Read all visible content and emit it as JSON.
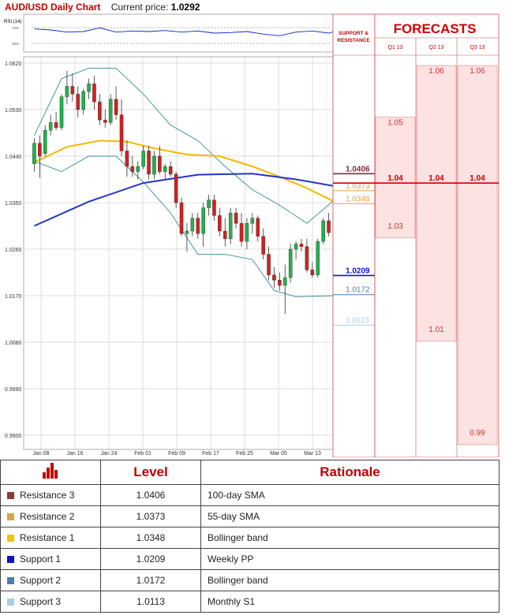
{
  "header": {
    "title": "AUD/USD Daily Chart",
    "price_label": "Current price:",
    "price": "1.0292"
  },
  "rsi_label": "RSI (14)",
  "rsi_ticks": [
    "70%",
    "30%"
  ],
  "sr_header": "SUPPORT & RESISTANCE",
  "forecasts_title": "FORECASTS",
  "colors": {
    "resistance3": "#7b2d3b",
    "resistance2": "#d9a441",
    "resistance1": "#f5c400",
    "support1": "#1111cc",
    "support2": "#4a7fb5",
    "support3": "#a8cde3",
    "up": "#22b14c",
    "down": "#d12020",
    "sma100": "#2233cc",
    "sma55": "#f5b800",
    "boll": "#2f8f8f"
  },
  "chart_data": {
    "type": "candlestick",
    "title": "AUD/USD Daily Chart",
    "ylim": [
      0.99,
      1.062
    ],
    "y_ticks": [
      "1.0620",
      "1.0530",
      "1.0440",
      "1.0350",
      "1.0260",
      "1.0170",
      "1.0080",
      "0.9990",
      "0.9900"
    ],
    "x_ticks": [
      "Jan 08",
      "Jan 16",
      "Jan 24",
      "Feb 01",
      "Feb 09",
      "Feb 17",
      "Feb 25",
      "Mar 05",
      "Mar 13"
    ],
    "ohlc": [
      [
        1.0425,
        1.0475,
        1.041,
        1.0465
      ],
      [
        1.0465,
        1.048,
        1.0398,
        1.044
      ],
      [
        1.0445,
        1.05,
        1.044,
        1.049
      ],
      [
        1.049,
        1.052,
        1.048,
        1.0505
      ],
      [
        1.0505,
        1.0525,
        1.049,
        1.0495
      ],
      [
        1.0495,
        1.056,
        1.049,
        1.0555
      ],
      [
        1.0555,
        1.0605,
        1.054,
        1.0575
      ],
      [
        1.0575,
        1.06,
        1.0545,
        1.056
      ],
      [
        1.056,
        1.0575,
        1.0515,
        1.053
      ],
      [
        1.053,
        1.057,
        1.052,
        1.0565
      ],
      [
        1.0565,
        1.059,
        1.055,
        1.058
      ],
      [
        1.058,
        1.0595,
        1.053,
        1.0545
      ],
      [
        1.0545,
        1.056,
        1.05,
        1.051
      ],
      [
        1.051,
        1.053,
        1.0495,
        1.0505
      ],
      [
        1.0505,
        1.056,
        1.05,
        1.055
      ],
      [
        1.055,
        1.0575,
        1.051,
        1.052
      ],
      [
        1.052,
        1.055,
        1.044,
        1.045
      ],
      [
        1.045,
        1.047,
        1.04,
        1.042
      ],
      [
        1.042,
        1.044,
        1.04,
        1.041
      ],
      [
        1.041,
        1.043,
        1.0395,
        1.042
      ],
      [
        1.042,
        1.046,
        1.0415,
        1.045
      ],
      [
        1.045,
        1.046,
        1.0395,
        1.0405
      ],
      [
        1.0405,
        1.045,
        1.0395,
        1.044
      ],
      [
        1.044,
        1.046,
        1.0405,
        1.041
      ],
      [
        1.041,
        1.0425,
        1.0395,
        1.042
      ],
      [
        1.042,
        1.043,
        1.04,
        1.0405
      ],
      [
        1.0405,
        1.041,
        1.034,
        1.035
      ],
      [
        1.035,
        1.036,
        1.0285,
        1.029
      ],
      [
        1.029,
        1.031,
        1.0255,
        1.0295
      ],
      [
        1.0295,
        1.033,
        1.0285,
        1.032
      ],
      [
        1.032,
        1.033,
        1.028,
        1.029
      ],
      [
        1.029,
        1.035,
        1.0265,
        1.034
      ],
      [
        1.034,
        1.0365,
        1.0325,
        1.0355
      ],
      [
        1.0355,
        1.0365,
        1.0315,
        1.0325
      ],
      [
        1.0325,
        1.034,
        1.0285,
        1.0295
      ],
      [
        1.0295,
        1.032,
        1.0265,
        1.028
      ],
      [
        1.028,
        1.034,
        1.027,
        1.033
      ],
      [
        1.033,
        1.034,
        1.03,
        1.031
      ],
      [
        1.031,
        1.033,
        1.0265,
        1.0275
      ],
      [
        1.0275,
        1.032,
        1.026,
        1.031
      ],
      [
        1.031,
        1.033,
        1.029,
        1.032
      ],
      [
        1.032,
        1.0325,
        1.0275,
        1.0285
      ],
      [
        1.0285,
        1.03,
        1.024,
        1.025
      ],
      [
        1.025,
        1.0265,
        1.02,
        1.021
      ],
      [
        1.021,
        1.0225,
        1.0185,
        1.02
      ],
      [
        1.02,
        1.0215,
        1.018,
        1.019
      ],
      [
        1.019,
        1.023,
        1.0135,
        1.0205
      ],
      [
        1.0205,
        1.027,
        1.0195,
        1.026
      ],
      [
        1.026,
        1.0275,
        1.024,
        1.027
      ],
      [
        1.027,
        1.028,
        1.0255,
        1.0265
      ],
      [
        1.0265,
        1.028,
        1.0215,
        1.022
      ],
      [
        1.022,
        1.0235,
        1.0205,
        1.021
      ],
      [
        1.021,
        1.028,
        1.0205,
        1.0275
      ],
      [
        1.0275,
        1.032,
        1.027,
        1.0315
      ],
      [
        1.0315,
        1.033,
        1.0285,
        1.0292
      ]
    ],
    "sma100": [
      [
        0,
        1.0305
      ],
      [
        10,
        1.0352
      ],
      [
        20,
        1.0388
      ],
      [
        30,
        1.0404
      ],
      [
        40,
        1.0406
      ],
      [
        48,
        1.0395
      ],
      [
        55,
        1.0382
      ]
    ],
    "sma55": [
      [
        0,
        1.0428
      ],
      [
        6,
        1.0458
      ],
      [
        12,
        1.047
      ],
      [
        17,
        1.0468
      ],
      [
        22,
        1.0455
      ],
      [
        28,
        1.0443
      ],
      [
        34,
        1.044
      ],
      [
        40,
        1.042
      ],
      [
        45,
        1.04
      ],
      [
        50,
        1.0378
      ],
      [
        55,
        1.0352
      ]
    ],
    "boll_upper": [
      [
        0,
        1.048
      ],
      [
        5,
        1.059
      ],
      [
        10,
        1.061
      ],
      [
        15,
        1.061
      ],
      [
        20,
        1.056
      ],
      [
        25,
        1.05
      ],
      [
        30,
        1.047
      ],
      [
        35,
        1.042
      ],
      [
        40,
        1.0375
      ],
      [
        45,
        1.0345
      ],
      [
        50,
        1.031
      ],
      [
        55,
        1.0355
      ]
    ],
    "boll_lower": [
      [
        0,
        1.043
      ],
      [
        5,
        1.041
      ],
      [
        10,
        1.044
      ],
      [
        15,
        1.044
      ],
      [
        20,
        1.039
      ],
      [
        25,
        1.033
      ],
      [
        30,
        1.025
      ],
      [
        35,
        1.025
      ],
      [
        40,
        1.024
      ],
      [
        44,
        1.018
      ],
      [
        48,
        1.0168
      ],
      [
        55,
        1.017
      ]
    ],
    "rsi": [
      [
        0,
        58
      ],
      [
        3,
        56
      ],
      [
        6,
        52
      ],
      [
        9,
        53
      ],
      [
        12,
        60
      ],
      [
        15,
        52
      ],
      [
        18,
        54
      ],
      [
        21,
        53
      ],
      [
        24,
        55
      ],
      [
        27,
        52
      ],
      [
        30,
        54
      ],
      [
        33,
        50
      ],
      [
        36,
        51
      ],
      [
        39,
        53
      ],
      [
        42,
        48
      ],
      [
        45,
        45
      ],
      [
        48,
        52
      ],
      [
        51,
        54
      ],
      [
        54,
        50
      ],
      [
        55,
        53
      ]
    ]
  },
  "support_resistance": [
    {
      "value": "1.0406",
      "color": "#7b2d3b",
      "bold": true
    },
    {
      "value": "1.0373",
      "color": "#d9a441",
      "bold": false
    },
    {
      "value": "1.0348",
      "color": "#d9a441",
      "bold": false
    },
    {
      "value": "1.0209",
      "color": "#1111cc",
      "bold": true
    },
    {
      "value": "1.0172",
      "color": "#4a7fb5",
      "bold": false
    },
    {
      "value": "1.0113",
      "color": "#a8cde3",
      "bold": false
    }
  ],
  "forecast_columns": [
    {
      "label": "Q1 13",
      "high": 1.05,
      "low": 1.03
    },
    {
      "label": "Q2 13",
      "high": 1.06,
      "low": 1.01
    },
    {
      "label": "Q3 13",
      "high": 1.06,
      "low": 0.99
    }
  ],
  "forecast_labels": [
    {
      "col": 0,
      "value": 1.05,
      "text": "1.05"
    },
    {
      "col": 0,
      "value": 1.04,
      "text": "1.04"
    },
    {
      "col": 0,
      "value": 1.03,
      "text": "1.03"
    },
    {
      "col": 1,
      "value": 1.06,
      "text": "1.06"
    },
    {
      "col": 1,
      "value": 1.04,
      "text": "1.04"
    },
    {
      "col": 1,
      "value": 1.01,
      "text": "1.01"
    },
    {
      "col": 2,
      "value": 1.06,
      "text": "1.06"
    },
    {
      "col": 2,
      "value": 1.04,
      "text": "1.04"
    },
    {
      "col": 2,
      "value": 0.99,
      "text": "0.99"
    }
  ],
  "table": {
    "headers": [
      "Level",
      "Rationale"
    ],
    "rows": [
      {
        "label": "Resistance 3",
        "level": "1.0406",
        "rationale": "100-day SMA",
        "color": "#8b3a3a"
      },
      {
        "label": "Resistance 2",
        "level": "1.0373",
        "rationale": "55-day SMA",
        "color": "#d9a441"
      },
      {
        "label": "Resistance 1",
        "level": "1.0348",
        "rationale": "Bollinger band",
        "color": "#f5c400"
      },
      {
        "label": "Support 1",
        "level": "1.0209",
        "rationale": "Weekly PP",
        "color": "#1111cc"
      },
      {
        "label": "Support 2",
        "level": "1.0172",
        "rationale": "Bollinger band",
        "color": "#4a7fb5"
      },
      {
        "label": "Support 3",
        "level": "1.0113",
        "rationale": "Monthly S1",
        "color": "#a8cde3"
      }
    ]
  }
}
